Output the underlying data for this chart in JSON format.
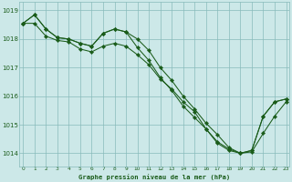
{
  "title": "Graphe pression niveau de la mer (hPa)",
  "bg_color": "#cce8e8",
  "grid_color": "#88bbbb",
  "line_color": "#1a5c1a",
  "hours": [
    0,
    1,
    2,
    3,
    4,
    5,
    6,
    7,
    8,
    9,
    10,
    11,
    12,
    13,
    14,
    15,
    16,
    17,
    18,
    19,
    20,
    21,
    22,
    23
  ],
  "line1": [
    1018.55,
    1018.85,
    1018.35,
    1018.05,
    1018.0,
    1017.85,
    1017.75,
    1018.2,
    1018.35,
    1018.25,
    1018.0,
    1017.6,
    1017.0,
    1016.55,
    1016.0,
    1015.55,
    1015.05,
    1014.65,
    1014.2,
    1014.0,
    1014.1,
    1015.3,
    1015.8,
    1015.9
  ],
  "line2": [
    1018.55,
    1018.85,
    1018.35,
    1018.05,
    1018.0,
    1017.85,
    1017.75,
    1018.2,
    1018.35,
    1018.25,
    1017.7,
    1017.25,
    1016.65,
    1016.2,
    1015.65,
    1015.25,
    1014.85,
    1014.4,
    1014.15,
    1014.0,
    1014.1,
    1015.3,
    1015.8,
    1015.9
  ],
  "line3": [
    1018.55,
    1018.55,
    1018.1,
    1017.95,
    1017.9,
    1017.65,
    1017.55,
    1017.75,
    1017.85,
    1017.75,
    1017.45,
    1017.1,
    1016.6,
    1016.25,
    1015.8,
    1015.45,
    1014.85,
    1014.35,
    1014.1,
    1014.0,
    1014.05,
    1014.7,
    1015.3,
    1015.8
  ],
  "ylim_min": 1013.55,
  "ylim_max": 1019.3,
  "yticks": [
    1014,
    1015,
    1016,
    1017,
    1018,
    1019
  ]
}
